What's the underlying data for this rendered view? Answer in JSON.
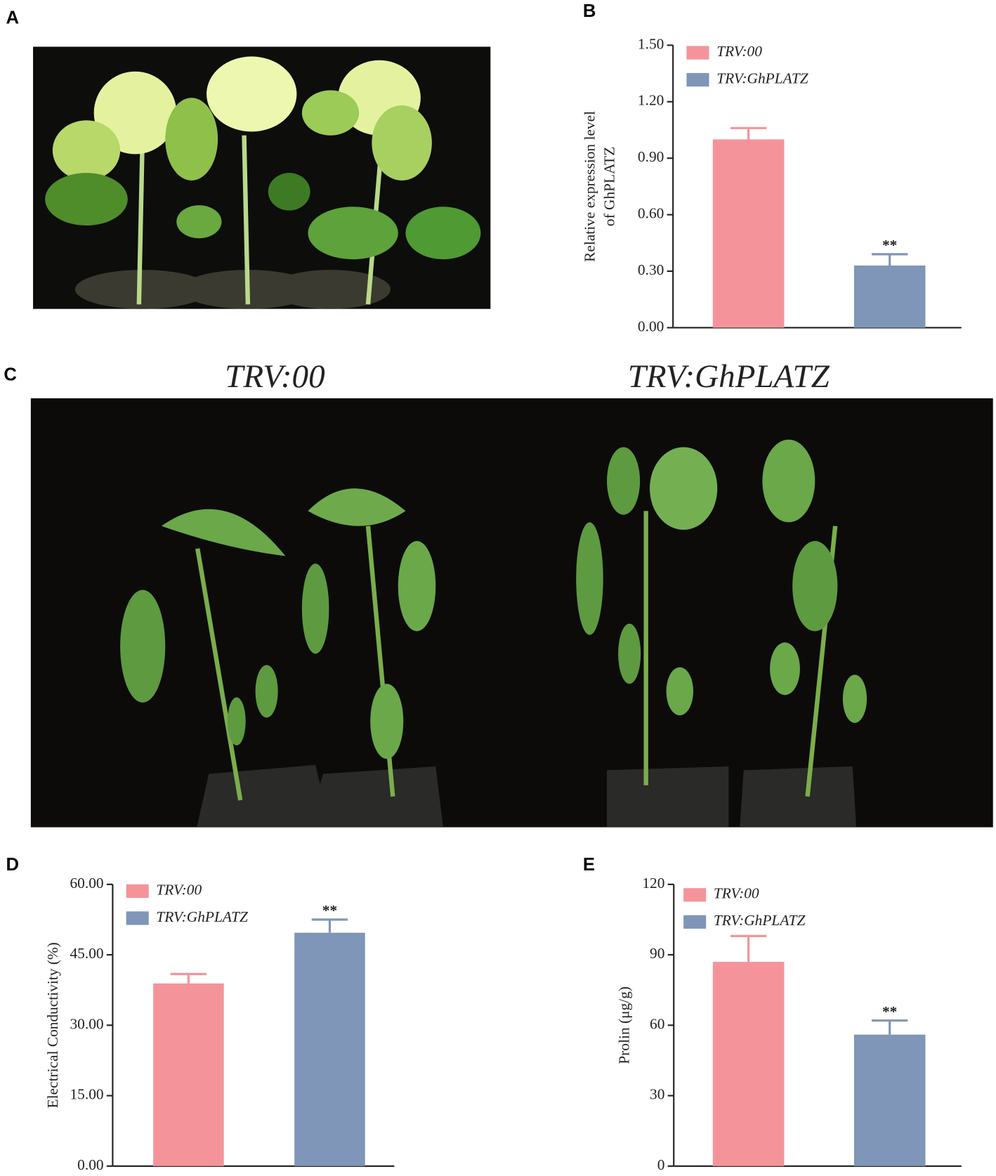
{
  "panels": {
    "labels": [
      "A",
      "B",
      "C",
      "D",
      "E"
    ],
    "photo_titles": [
      "TRV:00",
      "TRV:GhPLATZ"
    ]
  },
  "chart_data": [
    {
      "type": "bar",
      "ylabel": [
        "Relative expression level",
        "of GhPLATZ"
      ],
      "ylim": [
        0,
        1.5
      ],
      "yticks": [
        {
          "value": 0,
          "label": "0.00"
        },
        {
          "value": 0.3,
          "label": "0.30"
        },
        {
          "value": 0.6,
          "label": "0.60"
        },
        {
          "value": 0.9,
          "label": "0.90"
        },
        {
          "value": 1.2,
          "label": "1.20"
        },
        {
          "value": 1.5,
          "label": "1.50"
        }
      ],
      "series": [
        {
          "name": "TRV:00",
          "color": "#f4949a",
          "values": [
            1.0
          ],
          "errors": [
            0.06
          ]
        },
        {
          "name": "TRV:GhPLATZ",
          "color": "#7f96b8",
          "values": [
            0.33
          ],
          "errors": [
            0.06
          ]
        }
      ],
      "annotations": [
        {
          "text": "**",
          "series": 1
        }
      ]
    },
    {
      "type": "bar",
      "ylabel": [
        "Electrical Conductivity (%)"
      ],
      "ylim": [
        0,
        60
      ],
      "yticks": [
        {
          "value": 0,
          "label": "0.00"
        },
        {
          "value": 15,
          "label": "15.00"
        },
        {
          "value": 30,
          "label": "30.00"
        },
        {
          "value": 45,
          "label": "45.00"
        },
        {
          "value": 60,
          "label": "60.00"
        }
      ],
      "series": [
        {
          "name": "TRV:00",
          "color": "#f4949a",
          "values": [
            38.9
          ],
          "errors": [
            2.0
          ]
        },
        {
          "name": "TRV:GhPLATZ",
          "color": "#7f96b8",
          "values": [
            49.7
          ],
          "errors": [
            2.8
          ]
        }
      ],
      "annotations": [
        {
          "text": "**",
          "series": 1
        }
      ]
    },
    {
      "type": "bar",
      "ylabel": [
        "Prolin (μg/g)"
      ],
      "ylim": [
        0,
        120
      ],
      "yticks": [
        0,
        30,
        60,
        90,
        120
      ],
      "series": [
        {
          "name": "TRV:00",
          "color": "#f4949a",
          "values": [
            87
          ],
          "errors": [
            11
          ]
        },
        {
          "name": "TRV:GhPLATZ",
          "color": "#7f96b8",
          "values": [
            56
          ],
          "errors": [
            6
          ]
        }
      ],
      "annotations": [
        {
          "text": "**",
          "series": 1
        }
      ]
    }
  ]
}
